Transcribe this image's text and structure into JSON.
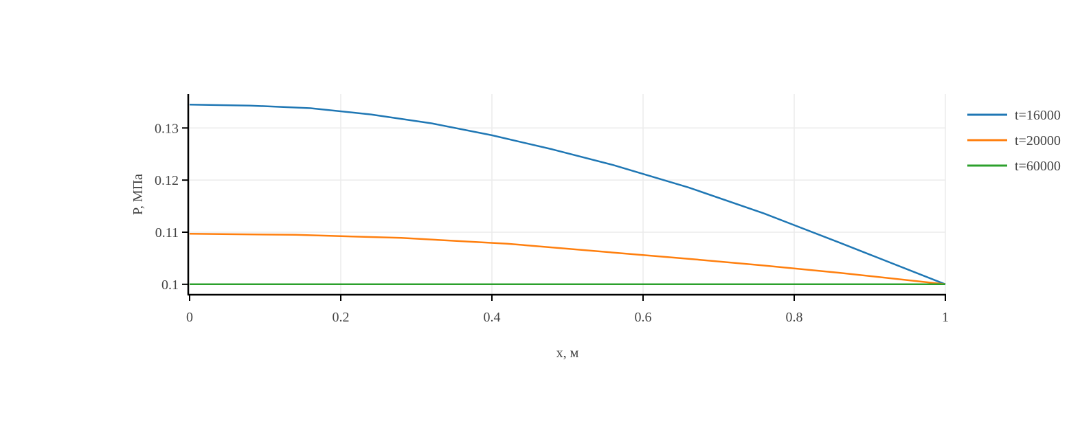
{
  "chart_data": {
    "type": "line",
    "title": "",
    "xlabel": "x, м",
    "ylabel": "P, МПа",
    "xlim": [
      0,
      1
    ],
    "ylim": [
      0.098,
      0.1365
    ],
    "xticks": [
      0,
      0.2,
      0.4,
      0.6,
      0.8,
      1
    ],
    "xtick_labels": [
      "0",
      "0.2",
      "0.4",
      "0.6",
      "0.8",
      "1"
    ],
    "yticks": [
      0.1,
      0.11,
      0.12,
      0.13
    ],
    "ytick_labels": [
      "0.1",
      "0.11",
      "0.12",
      "0.13"
    ],
    "grid": true,
    "legend_position": "top-right",
    "series": [
      {
        "name": "t=16000",
        "color": "#1f77b4",
        "x": [
          0,
          0.08,
          0.16,
          0.24,
          0.32,
          0.4,
          0.48,
          0.56,
          0.66,
          0.76,
          0.86,
          1.0
        ],
        "y": [
          0.1345,
          0.1343,
          0.1338,
          0.1326,
          0.1309,
          0.1286,
          0.1259,
          0.1229,
          0.1186,
          0.1136,
          0.108,
          0.1
        ]
      },
      {
        "name": "t=20000",
        "color": "#ff7f0e",
        "x": [
          0,
          0.14,
          0.28,
          0.42,
          0.56,
          0.66,
          0.76,
          0.86,
          1.0
        ],
        "y": [
          0.1097,
          0.1095,
          0.1089,
          0.1078,
          0.1061,
          0.1049,
          0.1036,
          0.1022,
          0.1
        ]
      },
      {
        "name": "t=60000",
        "color": "#2ca02c",
        "x": [
          0,
          0.25,
          0.5,
          0.75,
          1.0
        ],
        "y": [
          0.1,
          0.1,
          0.1,
          0.1,
          0.1
        ]
      }
    ]
  }
}
